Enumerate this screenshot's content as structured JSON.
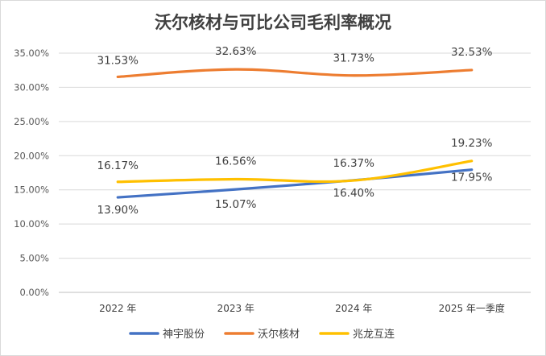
{
  "chart_data": {
    "type": "line",
    "title": "沃尔核材与可比公司毛利率概况",
    "xlabel": "",
    "ylabel": "",
    "categories": [
      "2022 年",
      "2023 年",
      "2024 年",
      "2025 年一季度"
    ],
    "ylim": [
      0,
      35
    ],
    "yticks": [
      "0.00%",
      "5.00%",
      "10.00%",
      "15.00%",
      "20.00%",
      "25.00%",
      "30.00%",
      "35.00%"
    ],
    "grid": true,
    "legend": "bottom",
    "series": [
      {
        "name": "神宇股份",
        "color": "#4472C4",
        "values": [
          13.9,
          15.07,
          16.4,
          17.95
        ],
        "labels": [
          "13.90%",
          "15.07%",
          "16.40%",
          "17.95%"
        ]
      },
      {
        "name": "沃尔核材",
        "color": "#ED7D31",
        "values": [
          31.53,
          32.63,
          31.73,
          32.53
        ],
        "labels": [
          "31.53%",
          "32.63%",
          "31.73%",
          "32.53%"
        ]
      },
      {
        "name": "兆龙互连",
        "color": "#FFC000",
        "values": [
          16.17,
          16.56,
          16.37,
          19.23
        ],
        "labels": [
          "16.17%",
          "16.56%",
          "16.37%",
          "19.23%"
        ]
      }
    ]
  }
}
